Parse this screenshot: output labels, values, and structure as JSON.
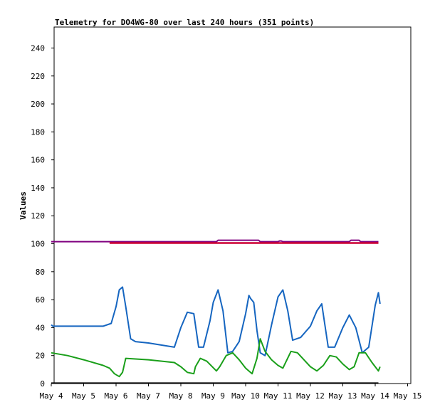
{
  "chart_data": {
    "type": "line",
    "title": "Telemetry for DO4WG-80 over last 240 hours (351 points)",
    "xlabel": "",
    "ylabel": "Values",
    "ylim": [
      0,
      255
    ],
    "y_ticks": [
      0,
      20,
      40,
      60,
      80,
      100,
      120,
      140,
      160,
      180,
      200,
      220,
      240
    ],
    "x_ticks": [
      "May 4",
      "May 5",
      "May 6",
      "May 7",
      "May 8",
      "May 9",
      "May 10",
      "May 11",
      "May 12",
      "May 13",
      "May 14",
      "May 15"
    ],
    "x_domain_days": [
      4.0,
      15.0
    ],
    "grid": false,
    "legend": "none",
    "series": [
      {
        "color": "#000000",
        "x": [
          4.0,
          14.1
        ],
        "values": [
          0.3,
          0.3
        ]
      },
      {
        "color": "#800080",
        "x": [
          4.0,
          5.8,
          9.1,
          9.15,
          10.4,
          10.45,
          11.0,
          11.05,
          11.1,
          11.15,
          13.2,
          13.25,
          13.5,
          13.55,
          14.1
        ],
        "values": [
          101.5,
          101.5,
          101.5,
          102.5,
          102.5,
          101.5,
          101.5,
          102.0,
          102.0,
          101.5,
          101.5,
          102.5,
          102.5,
          101.5,
          101.5
        ]
      },
      {
        "color": "#cc0033",
        "x": [
          5.8,
          14.1
        ],
        "values": [
          100.5,
          100.5
        ]
      },
      {
        "color": "#1565c0",
        "x": [
          4.0,
          4.05,
          4.2,
          5.0,
          5.6,
          5.85,
          6.0,
          6.1,
          6.2,
          6.3,
          6.45,
          6.6,
          7.0,
          7.8,
          8.0,
          8.2,
          8.4,
          8.55,
          8.7,
          8.9,
          9.0,
          9.15,
          9.3,
          9.45,
          9.6,
          9.8,
          10.0,
          10.1,
          10.15,
          10.25,
          10.35,
          10.45,
          10.6,
          10.8,
          11.0,
          11.15,
          11.3,
          11.45,
          11.7,
          12.0,
          12.2,
          12.35,
          12.55,
          12.75,
          13.0,
          13.2,
          13.4,
          13.6,
          13.8,
          14.0,
          14.1,
          14.15
        ],
        "values": [
          42,
          41,
          41,
          41,
          41,
          43,
          55,
          67,
          69,
          55,
          32,
          30,
          29,
          26,
          40,
          51,
          50,
          26,
          26,
          45,
          58,
          67,
          52,
          22,
          23,
          30,
          50,
          63,
          61,
          58,
          38,
          22,
          20,
          42,
          62,
          67,
          52,
          31,
          33,
          41,
          52,
          57,
          26,
          26,
          40,
          49,
          40,
          22,
          26,
          56,
          65,
          57
        ]
      },
      {
        "color": "#1a9f1a",
        "x": [
          4.0,
          4.5,
          5.0,
          5.6,
          5.8,
          5.95,
          6.1,
          6.2,
          6.3,
          7.0,
          7.8,
          8.0,
          8.2,
          8.4,
          8.45,
          8.6,
          8.8,
          9.1,
          9.2,
          9.4,
          9.6,
          9.8,
          10.0,
          10.2,
          10.35,
          10.45,
          10.6,
          10.8,
          11.0,
          11.15,
          11.4,
          11.6,
          11.8,
          12.0,
          12.2,
          12.4,
          12.6,
          12.8,
          13.0,
          13.2,
          13.35,
          13.5,
          13.7,
          13.9,
          14.0,
          14.1,
          14.15
        ],
        "values": [
          22,
          20,
          17,
          13,
          11,
          7,
          5,
          8,
          18,
          17,
          15,
          12,
          8,
          7,
          12,
          18,
          16,
          9,
          12,
          20,
          22,
          17,
          11,
          7,
          18,
          32,
          23,
          17,
          13,
          11,
          23,
          22,
          17,
          12,
          9,
          13,
          20,
          19,
          14,
          10,
          12,
          22,
          22,
          15,
          12,
          9,
          12
        ]
      }
    ]
  }
}
